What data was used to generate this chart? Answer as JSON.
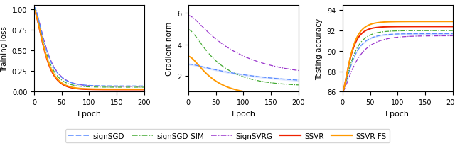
{
  "xlim": [
    0,
    200
  ],
  "plot1_ylabel": "Training loss",
  "plot1_xlabel": "Epoch",
  "plot1_ylim": [
    0.0,
    1.05
  ],
  "plot1_yticks": [
    0.0,
    0.25,
    0.5,
    0.75,
    1.0
  ],
  "plot2_ylabel": "Gradient norm",
  "plot2_xlabel": "Epoch",
  "plot2_ylim": [
    1.0,
    6.5
  ],
  "plot2_yticks": [
    2,
    4,
    6
  ],
  "plot3_ylabel": "Testing accuracy",
  "plot3_xlabel": "Epoch",
  "plot3_ylim": [
    86,
    94.5
  ],
  "plot3_yticks": [
    86,
    88,
    90,
    92,
    94
  ],
  "colors": {
    "signSGD": "#5588ff",
    "signSGD-SIM": "#44aa33",
    "SignSVRG": "#9933cc",
    "SSVR": "#ee2200",
    "SSVR-FS": "#ff9900"
  },
  "legend_labels": [
    "signSGD",
    "signSGD-SIM",
    "SignSVRG",
    "SSVR",
    "SSVR-FS"
  ]
}
